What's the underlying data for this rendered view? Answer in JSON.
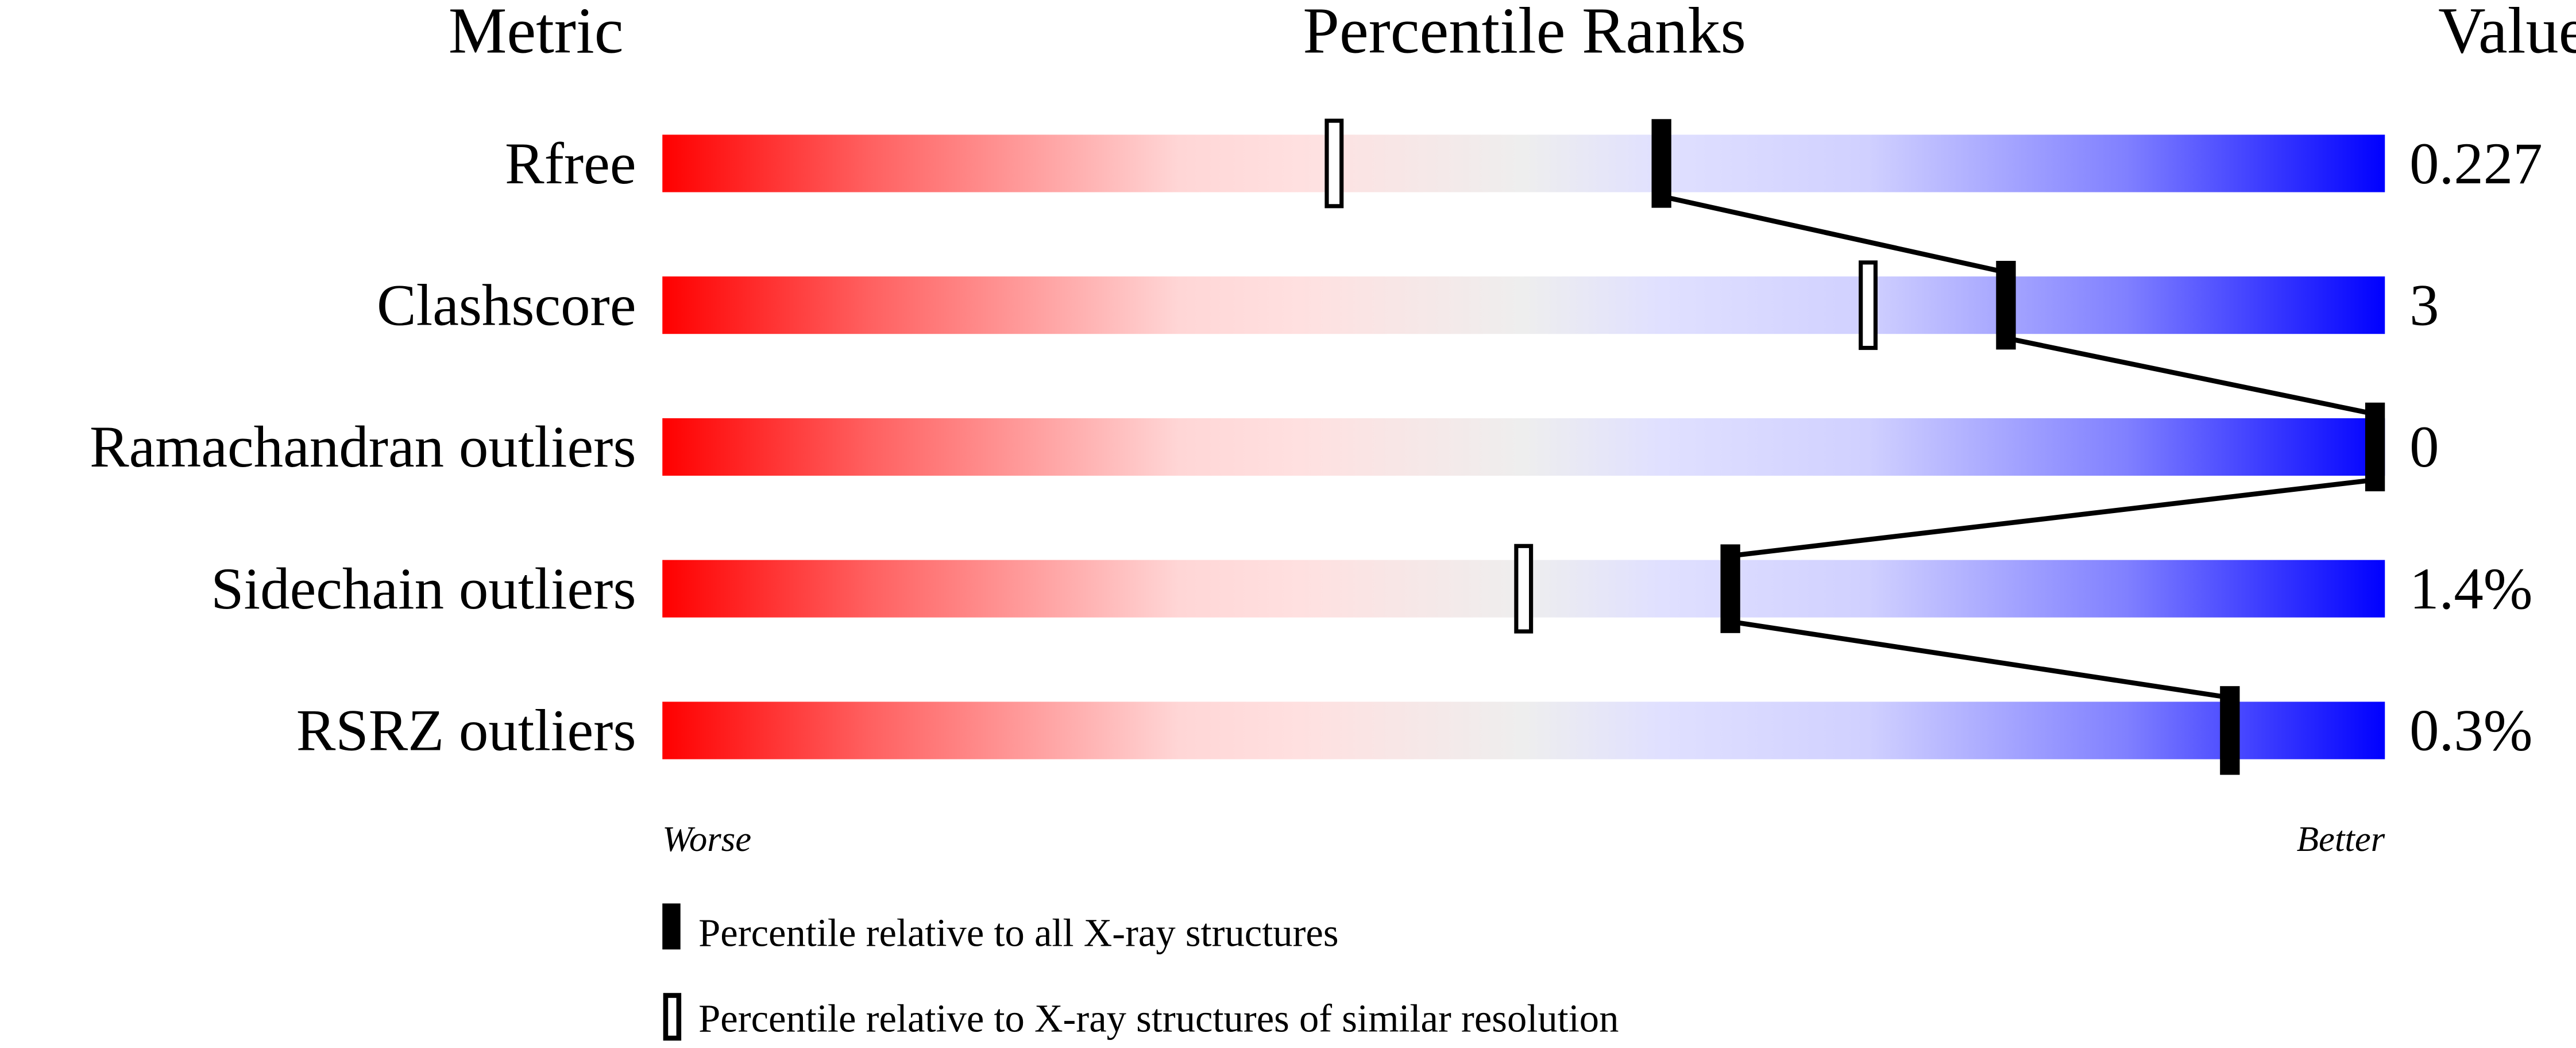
{
  "chart_data": {
    "type": "percentile-slider",
    "headers": {
      "metric": "Metric",
      "ranks": "Percentile Ranks",
      "value": "Value"
    },
    "xlim": [
      0,
      100
    ],
    "metrics": [
      {
        "name": "Rfree",
        "value": "0.227",
        "percentile_all": 58,
        "percentile_similar": 39
      },
      {
        "name": "Clashscore",
        "value": "3",
        "percentile_all": 78,
        "percentile_similar": 70
      },
      {
        "name": "Ramachandran outliers",
        "value": "0",
        "percentile_all": 100,
        "percentile_similar": null
      },
      {
        "name": "Sidechain outliers",
        "value": "1.4%",
        "percentile_all": 62,
        "percentile_similar": 50
      },
      {
        "name": "RSRZ outliers",
        "value": "0.3%",
        "percentile_all": 91,
        "percentile_similar": null
      }
    ],
    "axis_left_label": "Worse",
    "axis_right_label": "Better",
    "legend": [
      {
        "marker": "filled",
        "label": "Percentile relative to all X-ray structures"
      },
      {
        "marker": "open",
        "label": "Percentile relative to X-ray structures of similar resolution"
      }
    ],
    "colors": {
      "worse": "#ff0000",
      "middle": "#eeeeee",
      "better": "#0000ff"
    }
  }
}
